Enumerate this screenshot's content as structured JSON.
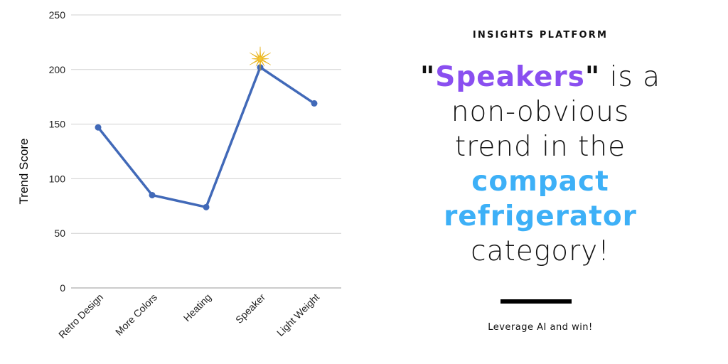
{
  "chart_data": {
    "type": "line",
    "ylabel": "Trend Score",
    "xlabel": "",
    "ylim": [
      0,
      250
    ],
    "yticks": [
      0,
      50,
      100,
      150,
      200,
      250
    ],
    "grid": true,
    "categories": [
      "Retro Design",
      "More Colors",
      "Heating",
      "Speaker",
      "Light Weight"
    ],
    "series": [
      {
        "values": [
          147,
          85,
          74,
          202,
          169
        ],
        "color": "#4169b8"
      }
    ],
    "highlight": {
      "category": "Speaker",
      "marker": "star-burst-icon",
      "color": "#f5c431"
    }
  },
  "panel": {
    "eyebrow": "INSIGHTS PLATFORM",
    "headline": {
      "quote_open": "\"",
      "quoted_word": "Speakers",
      "quote_close": "\"",
      "line1_rest": " is a",
      "line2": "non-obvious",
      "line3": "trend in the",
      "emphasis1": "compact",
      "emphasis2": "refrigerator",
      "line6": "category!"
    },
    "tagline": "Leverage AI and win!",
    "colors": {
      "quoted_word": "#8a4ff0",
      "emphasis": "#3db0f7"
    }
  }
}
